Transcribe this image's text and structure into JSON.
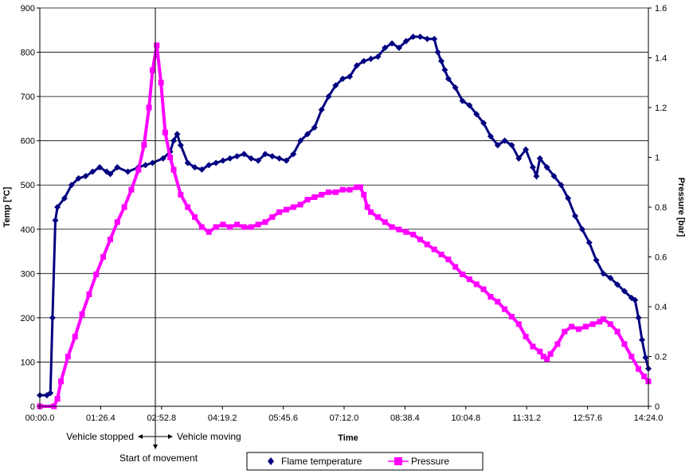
{
  "chart_data": {
    "type": "line",
    "title": "",
    "xlabel": "Time",
    "ylabel_left": "Temp [ºC]",
    "ylabel_right": "Pressure [bar]",
    "x_unit": "seconds",
    "xlim": [
      0,
      864
    ],
    "ylim_left": [
      0,
      900
    ],
    "ylim_right": [
      0,
      1.6
    ],
    "x_ticks": [
      "00:00.0",
      "01:26.4",
      "02:52.8",
      "04:19.2",
      "05:45.6",
      "07:12.0",
      "08:38.4",
      "10:04.8",
      "11:31.2",
      "12:57.6",
      "14:24.0"
    ],
    "y_ticks_left": [
      "0",
      "100",
      "200",
      "300",
      "400",
      "500",
      "600",
      "700",
      "800",
      "900"
    ],
    "y_ticks_right": [
      "0",
      "0.2",
      "0.4",
      "0.6",
      "0.8",
      "1",
      "1.2",
      "1.4",
      "1.6"
    ],
    "grid": true,
    "legend_position": "bottom",
    "series": [
      {
        "name": "Flame temperature",
        "axis": "left",
        "color": "#000080",
        "marker": "diamond",
        "points": [
          [
            0,
            25
          ],
          [
            10,
            25
          ],
          [
            15,
            30
          ],
          [
            18,
            200
          ],
          [
            22,
            420
          ],
          [
            25,
            450
          ],
          [
            35,
            470
          ],
          [
            45,
            500
          ],
          [
            55,
            515
          ],
          [
            65,
            520
          ],
          [
            75,
            530
          ],
          [
            85,
            540
          ],
          [
            95,
            530
          ],
          [
            100,
            525
          ],
          [
            110,
            540
          ],
          [
            125,
            530
          ],
          [
            140,
            540
          ],
          [
            150,
            545
          ],
          [
            160,
            550
          ],
          [
            175,
            560
          ],
          [
            185,
            575
          ],
          [
            190,
            600
          ],
          [
            195,
            615
          ],
          [
            200,
            590
          ],
          [
            210,
            550
          ],
          [
            220,
            540
          ],
          [
            230,
            535
          ],
          [
            240,
            545
          ],
          [
            250,
            550
          ],
          [
            260,
            555
          ],
          [
            270,
            560
          ],
          [
            280,
            565
          ],
          [
            290,
            570
          ],
          [
            300,
            560
          ],
          [
            310,
            555
          ],
          [
            320,
            570
          ],
          [
            330,
            565
          ],
          [
            340,
            560
          ],
          [
            350,
            555
          ],
          [
            360,
            570
          ],
          [
            370,
            600
          ],
          [
            380,
            615
          ],
          [
            390,
            630
          ],
          [
            400,
            670
          ],
          [
            410,
            700
          ],
          [
            420,
            725
          ],
          [
            430,
            740
          ],
          [
            440,
            745
          ],
          [
            450,
            770
          ],
          [
            460,
            780
          ],
          [
            470,
            785
          ],
          [
            480,
            790
          ],
          [
            490,
            810
          ],
          [
            500,
            820
          ],
          [
            510,
            810
          ],
          [
            520,
            825
          ],
          [
            530,
            835
          ],
          [
            540,
            835
          ],
          [
            550,
            830
          ],
          [
            560,
            830
          ],
          [
            565,
            800
          ],
          [
            570,
            780
          ],
          [
            575,
            760
          ],
          [
            580,
            740
          ],
          [
            590,
            720
          ],
          [
            600,
            690
          ],
          [
            610,
            680
          ],
          [
            620,
            660
          ],
          [
            630,
            640
          ],
          [
            640,
            610
          ],
          [
            650,
            590
          ],
          [
            660,
            600
          ],
          [
            670,
            590
          ],
          [
            680,
            560
          ],
          [
            690,
            580
          ],
          [
            700,
            540
          ],
          [
            705,
            520
          ],
          [
            710,
            560
          ],
          [
            720,
            540
          ],
          [
            730,
            520
          ],
          [
            740,
            500
          ],
          [
            750,
            470
          ],
          [
            760,
            430
          ],
          [
            770,
            400
          ],
          [
            780,
            370
          ],
          [
            790,
            330
          ],
          [
            800,
            300
          ],
          [
            810,
            290
          ],
          [
            820,
            275
          ],
          [
            830,
            260
          ],
          [
            840,
            245
          ],
          [
            845,
            240
          ],
          [
            850,
            200
          ],
          [
            855,
            150
          ],
          [
            860,
            110
          ],
          [
            864,
            85
          ]
        ]
      },
      {
        "name": "Pressure",
        "axis": "right",
        "color": "#ff00ff",
        "marker": "square",
        "points": [
          [
            0,
            0
          ],
          [
            20,
            0
          ],
          [
            25,
            0.03
          ],
          [
            30,
            0.1
          ],
          [
            40,
            0.2
          ],
          [
            50,
            0.28
          ],
          [
            60,
            0.37
          ],
          [
            70,
            0.45
          ],
          [
            80,
            0.53
          ],
          [
            90,
            0.6
          ],
          [
            100,
            0.67
          ],
          [
            110,
            0.74
          ],
          [
            120,
            0.8
          ],
          [
            130,
            0.87
          ],
          [
            140,
            0.95
          ],
          [
            148,
            1.05
          ],
          [
            155,
            1.2
          ],
          [
            160,
            1.35
          ],
          [
            166,
            1.45
          ],
          [
            172,
            1.3
          ],
          [
            178,
            1.1
          ],
          [
            185,
            1.0
          ],
          [
            190,
            0.95
          ],
          [
            200,
            0.85
          ],
          [
            210,
            0.8
          ],
          [
            220,
            0.76
          ],
          [
            230,
            0.72
          ],
          [
            240,
            0.7
          ],
          [
            250,
            0.72
          ],
          [
            260,
            0.73
          ],
          [
            270,
            0.72
          ],
          [
            280,
            0.73
          ],
          [
            290,
            0.72
          ],
          [
            300,
            0.72
          ],
          [
            310,
            0.73
          ],
          [
            320,
            0.74
          ],
          [
            330,
            0.76
          ],
          [
            340,
            0.78
          ],
          [
            350,
            0.79
          ],
          [
            360,
            0.8
          ],
          [
            370,
            0.81
          ],
          [
            380,
            0.83
          ],
          [
            390,
            0.84
          ],
          [
            400,
            0.85
          ],
          [
            410,
            0.86
          ],
          [
            420,
            0.86
          ],
          [
            430,
            0.87
          ],
          [
            440,
            0.87
          ],
          [
            450,
            0.88
          ],
          [
            455,
            0.88
          ],
          [
            460,
            0.85
          ],
          [
            465,
            0.8
          ],
          [
            470,
            0.78
          ],
          [
            480,
            0.76
          ],
          [
            490,
            0.74
          ],
          [
            500,
            0.72
          ],
          [
            510,
            0.71
          ],
          [
            520,
            0.7
          ],
          [
            530,
            0.69
          ],
          [
            540,
            0.67
          ],
          [
            550,
            0.65
          ],
          [
            560,
            0.63
          ],
          [
            570,
            0.61
          ],
          [
            580,
            0.59
          ],
          [
            590,
            0.56
          ],
          [
            600,
            0.53
          ],
          [
            610,
            0.51
          ],
          [
            620,
            0.49
          ],
          [
            630,
            0.47
          ],
          [
            640,
            0.44
          ],
          [
            650,
            0.42
          ],
          [
            660,
            0.39
          ],
          [
            670,
            0.36
          ],
          [
            680,
            0.33
          ],
          [
            690,
            0.28
          ],
          [
            700,
            0.24
          ],
          [
            710,
            0.22
          ],
          [
            715,
            0.2
          ],
          [
            720,
            0.19
          ],
          [
            725,
            0.21
          ],
          [
            735,
            0.25
          ],
          [
            745,
            0.3
          ],
          [
            755,
            0.32
          ],
          [
            765,
            0.31
          ],
          [
            775,
            0.32
          ],
          [
            785,
            0.33
          ],
          [
            795,
            0.34
          ],
          [
            800,
            0.35
          ],
          [
            810,
            0.33
          ],
          [
            820,
            0.3
          ],
          [
            830,
            0.25
          ],
          [
            840,
            0.2
          ],
          [
            850,
            0.15
          ],
          [
            858,
            0.12
          ],
          [
            864,
            0.1
          ]
        ]
      }
    ],
    "annotations": {
      "stopped": "Vehicle stopped",
      "moving": "Vehicle moving",
      "start": "Start of movement",
      "marker_x": 164
    }
  }
}
